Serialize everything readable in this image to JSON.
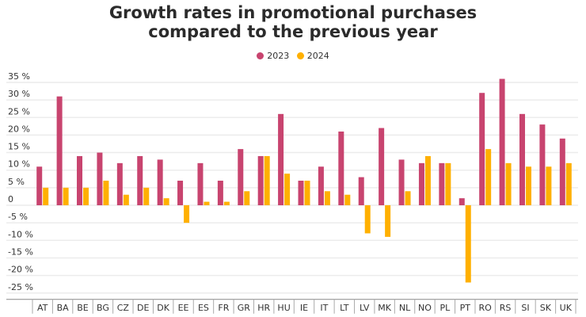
{
  "chart_data": {
    "type": "bar",
    "title_line1": "Growth rates in promotional purchases",
    "title_line2": "compared to the previous year",
    "xlabel": "",
    "ylabel": "",
    "ylim": [
      -25,
      35
    ],
    "yticks": [
      35,
      30,
      25,
      20,
      15,
      10,
      5,
      0,
      -5,
      -10,
      -15,
      -20,
      -25
    ],
    "ytick_labels": [
      "35 %",
      "30 %",
      "25 %",
      "20 %",
      "15 %",
      "10 %",
      "5 %",
      "0",
      "-5 %",
      "-10 %",
      "-15 %",
      "-20 %",
      "-25 %"
    ],
    "grid": true,
    "legend_position": "top-center",
    "categories": [
      "AT",
      "BA",
      "BE",
      "BG",
      "CZ",
      "DE",
      "DK",
      "EE",
      "ES",
      "FR",
      "GR",
      "HR",
      "HU",
      "IE",
      "IT",
      "LT",
      "LV",
      "MK",
      "NL",
      "NO",
      "PL",
      "PT",
      "RO",
      "RS",
      "SI",
      "SK",
      "UK"
    ],
    "series": [
      {
        "name": "2023",
        "color": "#c8446f",
        "values": [
          11,
          31,
          14,
          15,
          12,
          14,
          13,
          7,
          12,
          7,
          16,
          14,
          26,
          7,
          11,
          21,
          8,
          22,
          13,
          12,
          12,
          2,
          32,
          36,
          26,
          23,
          19
        ]
      },
      {
        "name": "2024",
        "color": "#ffb000",
        "values": [
          5,
          5,
          5,
          7,
          3,
          5,
          2,
          -5,
          1,
          1,
          4,
          14,
          9,
          7,
          4,
          3,
          -8,
          -9,
          4,
          14,
          12,
          -22,
          16,
          12,
          11,
          11,
          12
        ]
      }
    ]
  }
}
